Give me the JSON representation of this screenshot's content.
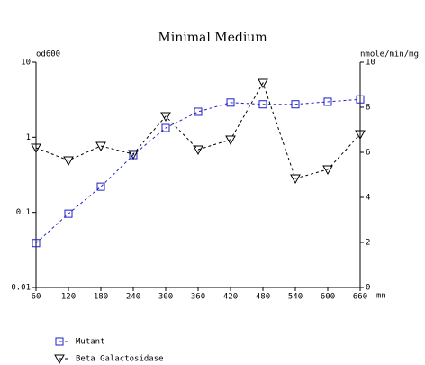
{
  "chart_data": {
    "type": "line",
    "title": "Minimal Medium",
    "y_label": "od600",
    "y2_label": "nmole/min/mg",
    "x_label": "mn",
    "x": [
      60,
      120,
      180,
      240,
      300,
      360,
      420,
      480,
      540,
      600,
      660
    ],
    "xlim": [
      60,
      660
    ],
    "xticks": [
      60,
      120,
      180,
      240,
      300,
      360,
      420,
      480,
      540,
      600,
      660
    ],
    "ylog": true,
    "ylim": [
      0.01,
      10
    ],
    "yticks": [
      0.01,
      0.1,
      1,
      10
    ],
    "y2lim": [
      0,
      10
    ],
    "y2ticks": [
      0,
      2,
      4,
      6,
      8,
      10
    ],
    "grid": false,
    "legend": "bottom-left",
    "series": [
      {
        "name": "Mutant",
        "color": "#1f1fc8",
        "marker": "square",
        "values": [
          0.039,
          0.096,
          0.22,
          0.58,
          1.33,
          2.19,
          2.9,
          2.75,
          2.75,
          2.97,
          3.2
        ]
      },
      {
        "name": "Beta Galactosidase",
        "color": "#000000",
        "marker": "triangle-down",
        "axis": "y2",
        "values": [
          6.2,
          5.64,
          6.28,
          5.92,
          7.6,
          6.12,
          6.56,
          9.08,
          4.84,
          5.24,
          6.8
        ]
      }
    ]
  }
}
